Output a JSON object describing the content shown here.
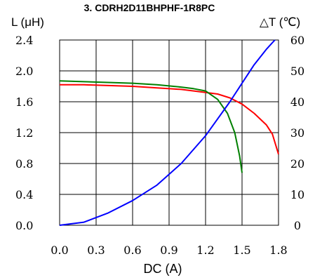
{
  "chart_data": {
    "type": "line",
    "title": "3. CDRH2D11BHPHF-1R8PC",
    "xlabel": "DC (A)",
    "ylabel_left": "L (μH)",
    "ylabel_right": "△T (℃)",
    "xlim": [
      0,
      1.8
    ],
    "ylim_left": [
      0,
      2.4
    ],
    "ylim_right": [
      0,
      60
    ],
    "x_ticks": [
      "0.0",
      "0.3",
      "0.6",
      "0.9",
      "1.2",
      "1.5",
      "1.8"
    ],
    "y_left_ticks": [
      "0.0",
      "0.4",
      "0.8",
      "1.2",
      "1.6",
      "2.0",
      "2.4"
    ],
    "y_right_ticks": [
      "0",
      "10",
      "20",
      "30",
      "40",
      "50",
      "60"
    ],
    "grid": true,
    "series": [
      {
        "color": "#ff0000",
        "axis": "left",
        "x": [
          0,
          0.2,
          0.4,
          0.6,
          0.8,
          1.0,
          1.2,
          1.3,
          1.4,
          1.5,
          1.6,
          1.7,
          1.75,
          1.8
        ],
        "y": [
          1.82,
          1.82,
          1.81,
          1.8,
          1.78,
          1.76,
          1.72,
          1.7,
          1.65,
          1.57,
          1.45,
          1.3,
          1.18,
          0.92
        ]
      },
      {
        "color": "#008000",
        "axis": "left",
        "x": [
          0,
          0.2,
          0.4,
          0.6,
          0.8,
          1.0,
          1.1,
          1.2,
          1.3,
          1.38,
          1.44,
          1.48,
          1.5
        ],
        "y": [
          1.87,
          1.86,
          1.85,
          1.84,
          1.82,
          1.79,
          1.77,
          1.74,
          1.63,
          1.45,
          1.2,
          0.9,
          0.68
        ]
      },
      {
        "color": "#0000ff",
        "axis": "right",
        "x": [
          0,
          0.2,
          0.4,
          0.6,
          0.8,
          1.0,
          1.2,
          1.4,
          1.5,
          1.6,
          1.7,
          1.77
        ],
        "y": [
          0,
          1,
          4,
          8,
          13,
          20,
          29,
          40,
          46,
          52,
          57,
          60
        ]
      }
    ]
  },
  "colors": {
    "grid": "#000000",
    "axis_text": "#000000"
  }
}
